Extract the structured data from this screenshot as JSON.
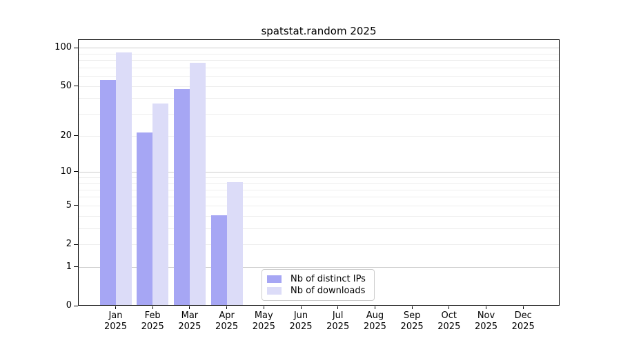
{
  "chart_data": {
    "type": "bar",
    "title": "spatstat.random 2025",
    "year_label": "2025",
    "categories": [
      "Jan",
      "Feb",
      "Mar",
      "Apr",
      "May",
      "Jun",
      "Jul",
      "Aug",
      "Sep",
      "Oct",
      "Nov",
      "Dec"
    ],
    "series": [
      {
        "name": "Nb of distinct IPs",
        "color": "#a6a6f4",
        "values": [
          55,
          21,
          47,
          4,
          0,
          0,
          0,
          0,
          0,
          0,
          0,
          0
        ]
      },
      {
        "name": "Nb of downloads",
        "color": "#dcdcf8",
        "values": [
          91,
          36,
          75,
          8,
          0,
          0,
          0,
          0,
          0,
          0,
          0,
          0
        ]
      }
    ],
    "xlabel": "",
    "ylabel": "",
    "y_scale": "log10(value+1), zero pinned to axis bottom",
    "y_ticks": [
      100,
      50,
      20,
      10,
      5,
      2,
      1,
      0
    ],
    "ylim": [
      0,
      117
    ],
    "grid": "horizontal, log minor (2-9, 20-90) light + major (1, 10, 100) darker",
    "legend_position": "lower center inside plot"
  },
  "colors": {
    "spine": "#000000",
    "grid_minor": "#ededed",
    "grid_major": "#cccccc",
    "background": "#ffffff"
  }
}
